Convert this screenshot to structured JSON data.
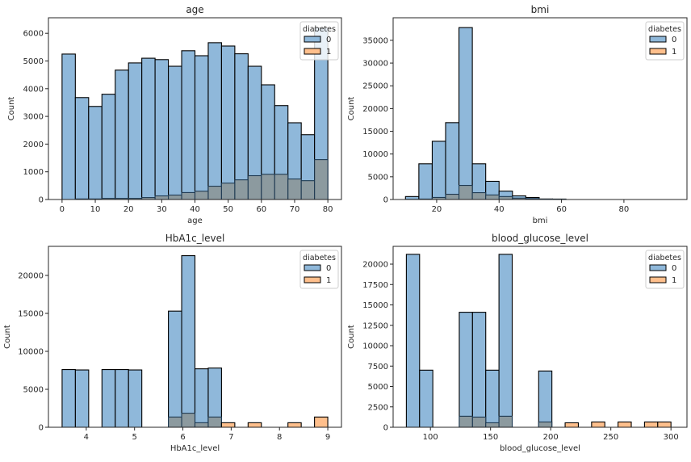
{
  "colors": {
    "series0": "#8fb8da",
    "series1": "#ffbf8c",
    "overlap": "#8c9a9f",
    "edge": "#000000"
  },
  "legend": {
    "title": "diabetes",
    "labels": [
      "0",
      "1"
    ]
  },
  "chart_data": [
    {
      "type": "bar",
      "title": "age",
      "xlabel": "age",
      "ylabel": "Count",
      "bin_start": 0,
      "bin_width": 4,
      "xlim": [
        -4.1,
        84.1
      ],
      "ylim": [
        0,
        6560
      ],
      "xticks": [
        0,
        10,
        20,
        30,
        40,
        50,
        60,
        70,
        80
      ],
      "yticks": [
        0,
        1000,
        2000,
        3000,
        4000,
        5000,
        6000
      ],
      "legend_position": "top-right",
      "series": [
        {
          "name": "0",
          "values": [
            5250,
            3680,
            3360,
            3800,
            4670,
            4930,
            5100,
            5050,
            4810,
            5370,
            5190,
            5660,
            5540,
            5260,
            4810,
            4140,
            3390,
            2770,
            2340,
            6200
          ]
        },
        {
          "name": "1",
          "values": [
            0,
            20,
            20,
            40,
            40,
            40,
            70,
            130,
            160,
            250,
            300,
            480,
            590,
            710,
            860,
            910,
            910,
            740,
            680,
            1440
          ]
        }
      ]
    },
    {
      "type": "bar",
      "title": "bmi",
      "xlabel": "bmi",
      "ylabel": "Count",
      "bin_start": 10.01,
      "bin_width": 4.284,
      "xlim": [
        6.05,
        100.2
      ],
      "ylim": [
        0,
        39960
      ],
      "xticks": [
        20,
        40,
        60,
        80
      ],
      "yticks": [
        0,
        5000,
        10000,
        15000,
        20000,
        25000,
        30000,
        35000
      ],
      "legend_position": "top-right",
      "series": [
        {
          "name": "0",
          "values": [
            650,
            7850,
            12800,
            16900,
            37800,
            7850,
            4000,
            1850,
            800,
            450,
            120,
            100,
            0,
            0,
            0,
            0,
            0,
            0,
            0,
            0
          ]
        },
        {
          "name": "1",
          "values": [
            30,
            100,
            450,
            1150,
            3100,
            1500,
            1000,
            650,
            300,
            200,
            80,
            60,
            0,
            0,
            0,
            0,
            0,
            0,
            0,
            0
          ]
        }
      ]
    },
    {
      "type": "bar",
      "title": "HbA1c_level",
      "xlabel": "HbA1c_level",
      "ylabel": "Count",
      "bin_start": 3.5,
      "bin_width": 0.275,
      "xlim": [
        3.217,
        9.283
      ],
      "ylim": [
        0,
        23830
      ],
      "xticks": [
        4,
        5,
        6,
        7,
        8,
        9
      ],
      "yticks": [
        0,
        5000,
        10000,
        15000,
        20000
      ],
      "legend_position": "top-right",
      "series": [
        {
          "name": "0",
          "values": [
            7600,
            7550,
            0,
            7600,
            7600,
            7550,
            0,
            0,
            15300,
            22600,
            7700,
            7800,
            0,
            0,
            0,
            0,
            0,
            0,
            0,
            0
          ]
        },
        {
          "name": "1",
          "values": [
            0,
            0,
            0,
            0,
            0,
            0,
            0,
            0,
            1350,
            1850,
            600,
            1350,
            600,
            0,
            600,
            0,
            0,
            600,
            0,
            1350
          ]
        }
      ]
    },
    {
      "type": "bar",
      "title": "blood_glucose_level",
      "xlabel": "blood_glucose_level",
      "ylabel": "Count",
      "bin_start": 80,
      "bin_width": 11,
      "xlim": [
        69,
        313.3
      ],
      "ylim": [
        0,
        22180
      ],
      "xticks": [
        100,
        150,
        200,
        250,
        300
      ],
      "yticks": [
        0,
        2500,
        5000,
        7500,
        10000,
        12500,
        15000,
        17500,
        20000
      ],
      "legend_position": "top-right",
      "series": [
        {
          "name": "0",
          "values": [
            21200,
            7000,
            0,
            0,
            14100,
            14100,
            7000,
            21200,
            0,
            0,
            6900,
            0,
            0,
            0,
            0,
            0,
            0,
            0,
            0,
            0
          ]
        },
        {
          "name": "1",
          "values": [
            0,
            0,
            0,
            0,
            1350,
            1250,
            550,
            1350,
            0,
            0,
            650,
            0,
            550,
            0,
            650,
            0,
            650,
            0,
            650,
            650
          ]
        }
      ]
    }
  ]
}
